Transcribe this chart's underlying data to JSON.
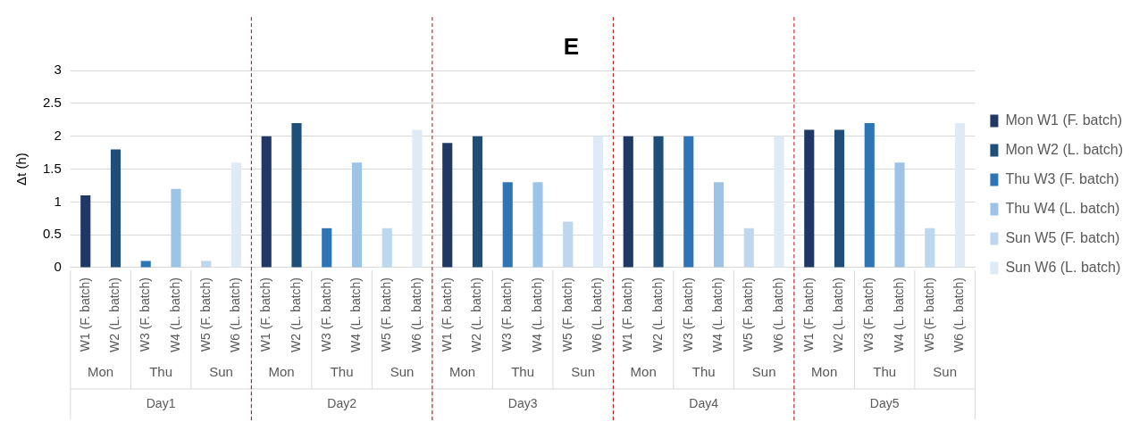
{
  "chart_data": {
    "type": "bar",
    "title": "E",
    "ylabel": "Δt (h)",
    "categories": [
      "W1 (F. batch)",
      "W2 (L. batch)",
      "W3 (F. batch)",
      "W4 (L. batch)",
      "W5 (F. batch)",
      "W6 (L. batch)",
      "W1 (F. batch)",
      "W2 (L. batch)",
      "W3 (F. batch)",
      "W4 (L. batch)",
      "W5 (F. batch)",
      "W6 (L. batch)",
      "W1 (F. batch)",
      "W2 (L. batch)",
      "W3 (F. batch)",
      "W4 (L. batch)",
      "W5 (F. batch)",
      "W6 (L. batch)",
      "W1 (F. batch)",
      "W2 (L. batch)",
      "W3 (F. batch)",
      "W4 (L. batch)",
      "W5 (F. batch)",
      "W6 (L. batch)",
      "W1 (F. batch)",
      "W2 (L. batch)",
      "W3 (F. batch)",
      "W4 (L. batch)",
      "W5 (F. batch)",
      "W6 (L. batch)"
    ],
    "series": [
      {
        "name": "Mon W1 (F. batch)",
        "color": "#203864",
        "values": [
          1.1,
          null,
          null,
          null,
          null,
          null,
          2.0,
          null,
          null,
          null,
          null,
          null,
          1.9,
          null,
          null,
          null,
          null,
          null,
          2.0,
          null,
          null,
          null,
          null,
          null,
          2.1,
          null,
          null,
          null,
          null,
          null
        ]
      },
      {
        "name": "Mon W2 (L. batch)",
        "color": "#1f4e79",
        "values": [
          null,
          1.8,
          null,
          null,
          null,
          null,
          null,
          2.2,
          null,
          null,
          null,
          null,
          null,
          2.0,
          null,
          null,
          null,
          null,
          null,
          2.0,
          null,
          null,
          null,
          null,
          null,
          2.1,
          null,
          null,
          null,
          null
        ]
      },
      {
        "name": "Thu W3 (F. batch)",
        "color": "#2e75b6",
        "values": [
          null,
          null,
          0.1,
          null,
          null,
          null,
          null,
          null,
          0.6,
          null,
          null,
          null,
          null,
          null,
          1.3,
          null,
          null,
          null,
          null,
          null,
          2.0,
          null,
          null,
          null,
          null,
          null,
          2.2,
          null,
          null,
          null
        ]
      },
      {
        "name": "Thu W4 (L. batch)",
        "color": "#9dc3e6",
        "values": [
          null,
          null,
          null,
          1.2,
          null,
          null,
          null,
          null,
          null,
          1.6,
          null,
          null,
          null,
          null,
          null,
          1.3,
          null,
          null,
          null,
          null,
          null,
          1.3,
          null,
          null,
          null,
          null,
          null,
          1.6,
          null,
          null
        ]
      },
      {
        "name": "Sun W5 (F. batch)",
        "color": "#bdd7ee",
        "values": [
          null,
          null,
          null,
          null,
          0.1,
          null,
          null,
          null,
          null,
          null,
          0.6,
          null,
          null,
          null,
          null,
          null,
          0.7,
          null,
          null,
          null,
          null,
          null,
          0.6,
          null,
          null,
          null,
          null,
          null,
          0.6,
          null
        ]
      },
      {
        "name": "Sun W6 (L. batch)",
        "color": "#deebf7",
        "values": [
          null,
          null,
          null,
          null,
          null,
          1.6,
          null,
          null,
          null,
          null,
          null,
          2.1,
          null,
          null,
          null,
          null,
          null,
          2.0,
          null,
          null,
          null,
          null,
          null,
          2.0,
          null,
          null,
          null,
          null,
          null,
          2.2
        ]
      }
    ],
    "annotations": [
      "Mon",
      "Thu",
      "Sun",
      "Mon",
      "Thu",
      "Sun",
      "Mon",
      "Thu",
      "Sun",
      "Mon",
      "Thu",
      "Sun",
      "Mon",
      "Thu",
      "Sun",
      "Day1",
      "Day2",
      "Day3",
      "Day4",
      "Day5"
    ],
    "ylim": [
      0,
      3
    ],
    "yticks": [
      0,
      0.5,
      1,
      1.5,
      2,
      2.5,
      3
    ],
    "grid": "y",
    "legend": "right"
  }
}
